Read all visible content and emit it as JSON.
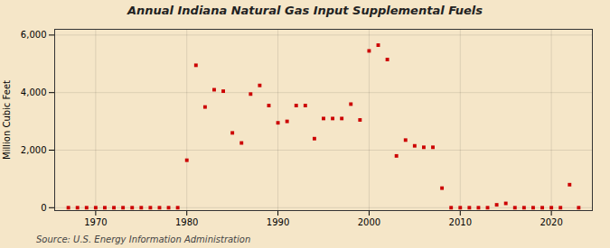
{
  "chart_data": {
    "type": "scatter",
    "title": "Annual Indiana Natural Gas Input Supplemental Fuels",
    "ylabel": "Million Cubic Feet",
    "caption": "Source: U.S. Energy Information Administration",
    "color": "#cc0000",
    "marker": "square",
    "grid": true,
    "xlim": [
      1965.5,
      2024.5
    ],
    "ylim": [
      -100,
      6200
    ],
    "xticks": [
      1970,
      1980,
      1990,
      2000,
      2010,
      2020
    ],
    "yticks": [
      0,
      {
        "value": 2000,
        "label": "2,000"
      },
      {
        "value": 4000,
        "label": "4,000"
      },
      {
        "value": 6000,
        "label": "6,000"
      }
    ],
    "x": [
      1967,
      1968,
      1969,
      1970,
      1971,
      1972,
      1973,
      1974,
      1975,
      1976,
      1977,
      1978,
      1979,
      1980,
      1981,
      1982,
      1983,
      1984,
      1985,
      1986,
      1987,
      1988,
      1989,
      1990,
      1991,
      1992,
      1993,
      1994,
      1995,
      1996,
      1997,
      1998,
      1999,
      2000,
      2001,
      2002,
      2003,
      2004,
      2005,
      2006,
      2007,
      2008,
      2009,
      2010,
      2011,
      2012,
      2013,
      2014,
      2015,
      2016,
      2017,
      2018,
      2019,
      2020,
      2021,
      2022,
      2023
    ],
    "values": [
      0,
      0,
      0,
      0,
      0,
      0,
      0,
      0,
      0,
      0,
      0,
      0,
      0,
      1650,
      4950,
      3500,
      4100,
      4050,
      2600,
      2250,
      3950,
      4250,
      3550,
      2950,
      3000,
      3550,
      3550,
      2400,
      3100,
      3100,
      3100,
      3600,
      3050,
      5450,
      5650,
      5150,
      1800,
      2350,
      2150,
      2100,
      2100,
      680,
      0,
      0,
      0,
      0,
      0,
      100,
      150,
      0,
      0,
      0,
      0,
      0,
      0,
      800,
      0
    ]
  }
}
